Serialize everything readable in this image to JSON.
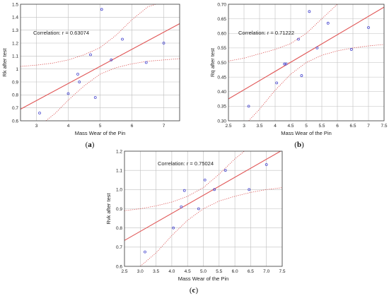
{
  "colors": {
    "fit_line": "#e05555",
    "confidence_band": "#d94848",
    "points": "#4a4ad0",
    "grid": "#bfbfbf",
    "frame": "#333333"
  },
  "chart_data": [
    {
      "type": "scatter",
      "panel_caption_prefix": "(",
      "panel_letter": "a",
      "panel_caption_suffix": ")",
      "title": "",
      "xlabel": "Mass Wear of the Pin",
      "ylabel": "Rk after test",
      "annotation": "Correlation: r = 0.63074",
      "xlim": [
        2.5,
        7.5
      ],
      "ylim": [
        0.6,
        1.5
      ],
      "xticks": [
        "3",
        "4",
        "5",
        "6",
        "7"
      ],
      "yticks": [
        "0.6",
        "0.7",
        "0.8",
        "0.9",
        "1",
        "1.1",
        "1.2",
        "1.3",
        "1.4",
        "1.5"
      ],
      "grid": true,
      "points": [
        {
          "x": 3.1,
          "y": 0.66
        },
        {
          "x": 4.0,
          "y": 0.81
        },
        {
          "x": 4.3,
          "y": 0.96
        },
        {
          "x": 4.35,
          "y": 0.9
        },
        {
          "x": 4.7,
          "y": 1.11
        },
        {
          "x": 4.85,
          "y": 0.78
        },
        {
          "x": 5.05,
          "y": 1.46
        },
        {
          "x": 5.35,
          "y": 1.07
        },
        {
          "x": 5.7,
          "y": 1.23
        },
        {
          "x": 6.45,
          "y": 1.05
        },
        {
          "x": 7.0,
          "y": 1.2
        }
      ],
      "fit_line": [
        {
          "x": 2.5,
          "y": 0.69
        },
        {
          "x": 7.5,
          "y": 1.35
        }
      ],
      "band_upper": [
        {
          "x": 2.5,
          "y": 1.02
        },
        {
          "x": 3.0,
          "y": 1.03
        },
        {
          "x": 3.5,
          "y": 1.045
        },
        {
          "x": 4.0,
          "y": 1.07
        },
        {
          "x": 4.5,
          "y": 1.11
        },
        {
          "x": 5.0,
          "y": 1.165
        },
        {
          "x": 5.5,
          "y": 1.26
        },
        {
          "x": 6.0,
          "y": 1.38
        },
        {
          "x": 6.5,
          "y": 1.48
        },
        {
          "x": 6.75,
          "y": 1.5
        }
      ],
      "band_lower": [
        {
          "x": 3.3,
          "y": 0.6
        },
        {
          "x": 3.6,
          "y": 0.66
        },
        {
          "x": 4.0,
          "y": 0.76
        },
        {
          "x": 4.5,
          "y": 0.87
        },
        {
          "x": 5.0,
          "y": 0.96
        },
        {
          "x": 5.5,
          "y": 1.01
        },
        {
          "x": 6.0,
          "y": 1.04
        },
        {
          "x": 6.5,
          "y": 1.06
        },
        {
          "x": 7.0,
          "y": 1.07
        },
        {
          "x": 7.5,
          "y": 1.08
        }
      ]
    },
    {
      "type": "scatter",
      "panel_caption_prefix": "(",
      "panel_letter": "b",
      "panel_caption_suffix": ")",
      "title": "",
      "xlabel": "Mass Wear of the Pin",
      "ylabel": "Rq after test",
      "annotation": "Correlation: r = 0.71222",
      "xlim": [
        2.5,
        7.5
      ],
      "ylim": [
        0.3,
        0.7
      ],
      "xticks": [
        "2.5",
        "3",
        "3.5",
        "4",
        "4.5",
        "5",
        "5.5",
        "6",
        "6.5",
        "7",
        "7.5"
      ],
      "yticks": [
        "0.30",
        "0.35",
        "0.40",
        "0.45",
        "0.50",
        "0.55",
        "0.60",
        "0.65",
        "0.70"
      ],
      "grid": true,
      "points": [
        {
          "x": 3.15,
          "y": 0.35
        },
        {
          "x": 4.05,
          "y": 0.43
        },
        {
          "x": 4.3,
          "y": 0.495
        },
        {
          "x": 4.35,
          "y": 0.495
        },
        {
          "x": 4.75,
          "y": 0.58
        },
        {
          "x": 4.85,
          "y": 0.455
        },
        {
          "x": 5.1,
          "y": 0.675
        },
        {
          "x": 5.35,
          "y": 0.55
        },
        {
          "x": 5.7,
          "y": 0.635
        },
        {
          "x": 6.45,
          "y": 0.545
        },
        {
          "x": 7.0,
          "y": 0.62
        }
      ],
      "fit_line": [
        {
          "x": 2.5,
          "y": 0.375
        },
        {
          "x": 7.5,
          "y": 0.69
        }
      ],
      "band_upper": [
        {
          "x": 2.5,
          "y": 0.505
        },
        {
          "x": 3.0,
          "y": 0.515
        },
        {
          "x": 3.5,
          "y": 0.53
        },
        {
          "x": 4.0,
          "y": 0.545
        },
        {
          "x": 4.5,
          "y": 0.565
        },
        {
          "x": 5.0,
          "y": 0.6
        },
        {
          "x": 5.5,
          "y": 0.65
        },
        {
          "x": 6.0,
          "y": 0.7
        }
      ],
      "band_lower": [
        {
          "x": 3.15,
          "y": 0.3
        },
        {
          "x": 3.5,
          "y": 0.34
        },
        {
          "x": 4.0,
          "y": 0.405
        },
        {
          "x": 4.5,
          "y": 0.46
        },
        {
          "x": 5.0,
          "y": 0.5
        },
        {
          "x": 5.5,
          "y": 0.525
        },
        {
          "x": 6.0,
          "y": 0.54
        },
        {
          "x": 6.5,
          "y": 0.55
        },
        {
          "x": 7.0,
          "y": 0.557
        },
        {
          "x": 7.5,
          "y": 0.562
        }
      ]
    },
    {
      "type": "scatter",
      "panel_caption_prefix": "(",
      "panel_letter": "c",
      "panel_caption_suffix": ")",
      "title": "",
      "xlabel": "Mass Wear of the Pin",
      "ylabel": "Rvk after test",
      "annotation": "Correlation: r = 0.75024",
      "xlim": [
        2.5,
        7.5
      ],
      "ylim": [
        0.6,
        1.2
      ],
      "xticks": [
        "2.5",
        "3.0",
        "3.5",
        "4.0",
        "4.5",
        "5.0",
        "5.5",
        "6.0",
        "6.5",
        "7.0",
        "7.5"
      ],
      "yticks": [
        "0.6",
        "0.7",
        "0.8",
        "0.9",
        "1.0",
        "1.1",
        "1.2"
      ],
      "grid": true,
      "points": [
        {
          "x": 3.15,
          "y": 0.675
        },
        {
          "x": 4.05,
          "y": 0.8
        },
        {
          "x": 4.3,
          "y": 0.91
        },
        {
          "x": 4.4,
          "y": 0.995
        },
        {
          "x": 4.85,
          "y": 0.9
        },
        {
          "x": 5.05,
          "y": 1.05
        },
        {
          "x": 5.35,
          "y": 1.0
        },
        {
          "x": 5.7,
          "y": 1.1
        },
        {
          "x": 6.45,
          "y": 1.0
        },
        {
          "x": 7.0,
          "y": 1.13
        }
      ],
      "fit_line": [
        {
          "x": 2.5,
          "y": 0.735
        },
        {
          "x": 7.5,
          "y": 1.205
        }
      ],
      "band_upper": [
        {
          "x": 2.5,
          "y": 0.89
        },
        {
          "x": 3.0,
          "y": 0.9
        },
        {
          "x": 3.5,
          "y": 0.915
        },
        {
          "x": 4.0,
          "y": 0.935
        },
        {
          "x": 4.5,
          "y": 0.965
        },
        {
          "x": 5.0,
          "y": 1.01
        },
        {
          "x": 5.5,
          "y": 1.08
        },
        {
          "x": 6.0,
          "y": 1.16
        },
        {
          "x": 6.3,
          "y": 1.2
        }
      ],
      "band_lower": [
        {
          "x": 3.0,
          "y": 0.6
        },
        {
          "x": 3.5,
          "y": 0.67
        },
        {
          "x": 4.0,
          "y": 0.76
        },
        {
          "x": 4.5,
          "y": 0.84
        },
        {
          "x": 5.0,
          "y": 0.9
        },
        {
          "x": 5.5,
          "y": 0.94
        },
        {
          "x": 6.0,
          "y": 0.965
        },
        {
          "x": 6.5,
          "y": 0.985
        },
        {
          "x": 7.0,
          "y": 1.0
        },
        {
          "x": 7.5,
          "y": 1.01
        }
      ]
    }
  ]
}
